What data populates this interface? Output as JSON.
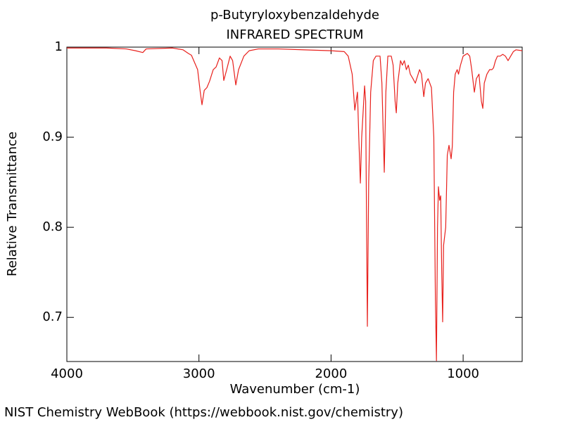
{
  "chart_data": {
    "type": "line",
    "title": "p-Butyryloxybenzaldehyde",
    "subtitle": "INFRARED SPECTRUM",
    "x_label": "Wavenumber (cm-1)",
    "y_label": "Relative Transmittance",
    "source": "NIST Chemistry WebBook (https://webbook.nist.gov/chemistry)",
    "color": "#e8201c",
    "xlim": [
      4000,
      553
    ],
    "ylim": [
      0.651,
      1
    ],
    "xticks": [
      4000,
      3000,
      2000,
      1000
    ],
    "yticks": [
      1,
      0.9,
      0.8,
      0.7
    ],
    "x": [
      4000,
      3700,
      3550,
      3480,
      3425,
      3400,
      3200,
      3120,
      3080,
      3057,
      3010,
      2990,
      2977,
      2960,
      2940,
      2920,
      2892,
      2870,
      2845,
      2825,
      2812,
      2790,
      2764,
      2745,
      2721,
      2700,
      2660,
      2620,
      2550,
      2400,
      2200,
      2000,
      1900,
      1870,
      1840,
      1820,
      1800,
      1790,
      1778,
      1768,
      1746,
      1738,
      1732,
      1725,
      1715,
      1700,
      1680,
      1660,
      1629,
      1615,
      1597,
      1585,
      1570,
      1544,
      1530,
      1515,
      1506,
      1495,
      1474,
      1460,
      1445,
      1430,
      1415,
      1400,
      1380,
      1362,
      1330,
      1315,
      1298,
      1285,
      1265,
      1240,
      1222,
      1210,
      1202,
      1194,
      1187,
      1178,
      1170,
      1162,
      1155,
      1148,
      1132,
      1120,
      1107,
      1091,
      1082,
      1072,
      1060,
      1045,
      1035,
      1020,
      1000,
      968,
      950,
      935,
      915,
      900,
      880,
      862,
      851,
      840,
      820,
      800,
      782,
      770,
      755,
      740,
      720,
      700,
      680,
      660,
      640,
      620,
      600,
      553
    ],
    "values": [
      0.999,
      0.999,
      0.998,
      0.996,
      0.994,
      0.998,
      0.999,
      0.997,
      0.993,
      0.991,
      0.975,
      0.95,
      0.936,
      0.952,
      0.955,
      0.962,
      0.975,
      0.978,
      0.988,
      0.985,
      0.963,
      0.975,
      0.99,
      0.985,
      0.958,
      0.975,
      0.99,
      0.996,
      0.998,
      0.998,
      0.997,
      0.996,
      0.995,
      0.99,
      0.97,
      0.93,
      0.95,
      0.9,
      0.849,
      0.9,
      0.957,
      0.94,
      0.82,
      0.69,
      0.85,
      0.95,
      0.985,
      0.99,
      0.99,
      0.96,
      0.861,
      0.95,
      0.99,
      0.99,
      0.98,
      0.94,
      0.927,
      0.96,
      0.985,
      0.98,
      0.985,
      0.975,
      0.98,
      0.97,
      0.965,
      0.96,
      0.975,
      0.97,
      0.945,
      0.96,
      0.965,
      0.955,
      0.9,
      0.72,
      0.652,
      0.8,
      0.845,
      0.83,
      0.835,
      0.75,
      0.695,
      0.78,
      0.8,
      0.88,
      0.891,
      0.876,
      0.89,
      0.95,
      0.97,
      0.975,
      0.97,
      0.98,
      0.99,
      0.993,
      0.99,
      0.975,
      0.95,
      0.965,
      0.97,
      0.94,
      0.932,
      0.96,
      0.97,
      0.975,
      0.975,
      0.977,
      0.985,
      0.99,
      0.99,
      0.992,
      0.99,
      0.985,
      0.99,
      0.995,
      0.997,
      0.996
    ]
  }
}
